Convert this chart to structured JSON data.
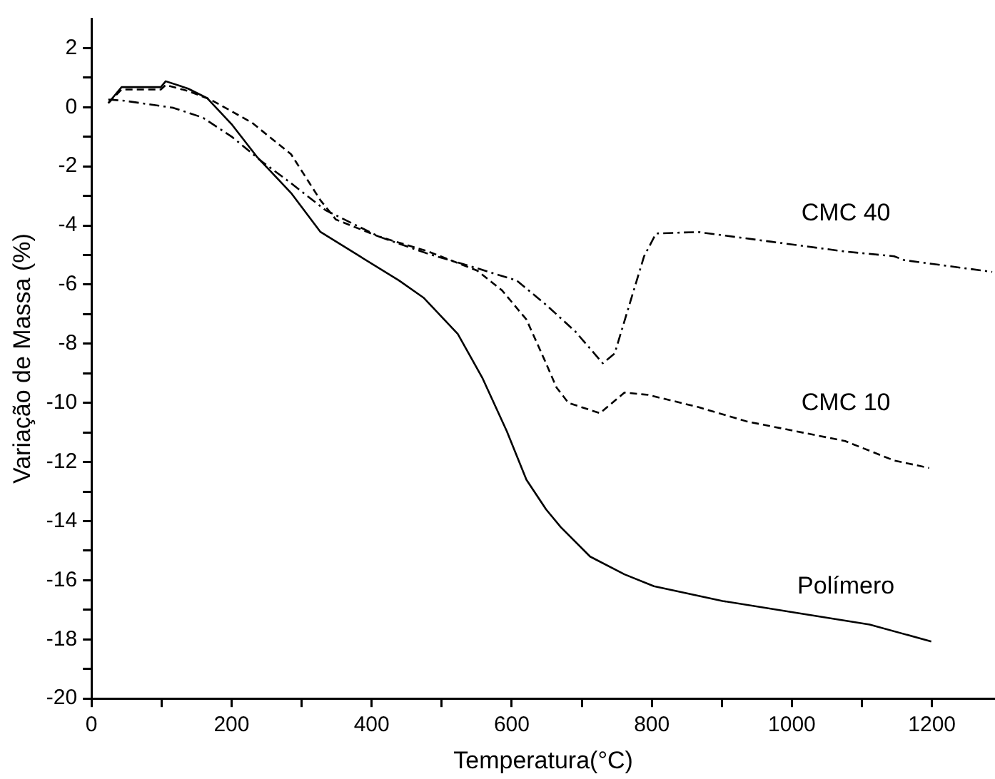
{
  "chart_data": {
    "type": "line",
    "xlabel": "Temperatura(°C)",
    "ylabel": "Variação de Massa (%)",
    "xlim": [
      0,
      1290
    ],
    "ylim": [
      -20,
      3
    ],
    "xticks": [
      0,
      {
        "value": 100,
        "label": null
      },
      200,
      {
        "value": 300,
        "label": null
      },
      400,
      {
        "value": 500,
        "label": null
      },
      600,
      {
        "value": 700,
        "label": null
      },
      800,
      {
        "value": 900,
        "label": null
      },
      1000,
      {
        "value": 1100,
        "label": null
      },
      1200
    ],
    "yticks": [
      -20,
      {
        "value": -19,
        "label": null
      },
      -18,
      {
        "value": -17,
        "label": null
      },
      -16,
      {
        "value": -15,
        "label": null
      },
      -14,
      {
        "value": -13,
        "label": null
      },
      -12,
      {
        "value": -11,
        "label": null
      },
      -10,
      {
        "value": -9,
        "label": null
      },
      -8,
      {
        "value": -7,
        "label": null
      },
      -6,
      {
        "value": -5,
        "label": null
      },
      -4,
      {
        "value": -3,
        "label": null
      },
      -2,
      {
        "value": -1,
        "label": null
      },
      0,
      {
        "value": 1,
        "label": null
      },
      2
    ],
    "grid": false,
    "legend": false,
    "marker": "none",
    "series": [
      {
        "name": "Polímero",
        "color": "#000000",
        "line_style": "solid",
        "x": [
          24,
          43,
          99,
          106,
          138,
          165,
          201,
          236,
          285,
          327,
          383,
          439,
          474,
          523,
          558,
          593,
          621,
          649,
          670,
          712,
          761,
          803,
          901,
          1006,
          1111,
          1199
        ],
        "values": [
          0.14,
          0.68,
          0.68,
          0.88,
          0.63,
          0.31,
          -0.6,
          -1.67,
          -2.9,
          -4.22,
          -5.04,
          -5.86,
          -6.44,
          -7.67,
          -9.15,
          -10.96,
          -12.6,
          -13.6,
          -14.2,
          -15.2,
          -15.8,
          -16.2,
          -16.7,
          -17.1,
          -17.5,
          -18.07
        ]
      },
      {
        "name": "CMC 10",
        "color": "#000000",
        "line_style": "dashed",
        "x": [
          24,
          43,
          99,
          106,
          138,
          170,
          229,
          285,
          327,
          349,
          411,
          481,
          551,
          586,
          621,
          646,
          664,
          681,
          726,
          761,
          795,
          866,
          936,
          1006,
          1076,
          1146,
          1196
        ],
        "values": [
          0.14,
          0.6,
          0.6,
          0.75,
          0.55,
          0.26,
          -0.52,
          -1.59,
          -3.15,
          -3.8,
          -4.38,
          -4.88,
          -5.53,
          -6.19,
          -7.18,
          -8.5,
          -9.48,
          -10.0,
          -10.35,
          -9.65,
          -9.73,
          -10.14,
          -10.63,
          -10.96,
          -11.29,
          -11.95,
          -12.2
        ]
      },
      {
        "name": "CMC 40",
        "color": "#000000",
        "line_style": "dashdot",
        "x": [
          24,
          47,
          117,
          159,
          201,
          243,
          285,
          334,
          411,
          481,
          551,
          607,
          649,
          691,
          730,
          747,
          768,
          789,
          806,
          866,
          971,
          1076,
          1146,
          1160,
          1286
        ],
        "values": [
          0.26,
          0.22,
          -0.02,
          -0.35,
          -1.01,
          -1.83,
          -2.57,
          -3.48,
          -4.38,
          -4.96,
          -5.45,
          -5.86,
          -6.68,
          -7.59,
          -8.66,
          -8.33,
          -6.68,
          -5.04,
          -4.27,
          -4.22,
          -4.55,
          -4.88,
          -5.04,
          -5.17,
          -5.57
        ]
      }
    ]
  }
}
